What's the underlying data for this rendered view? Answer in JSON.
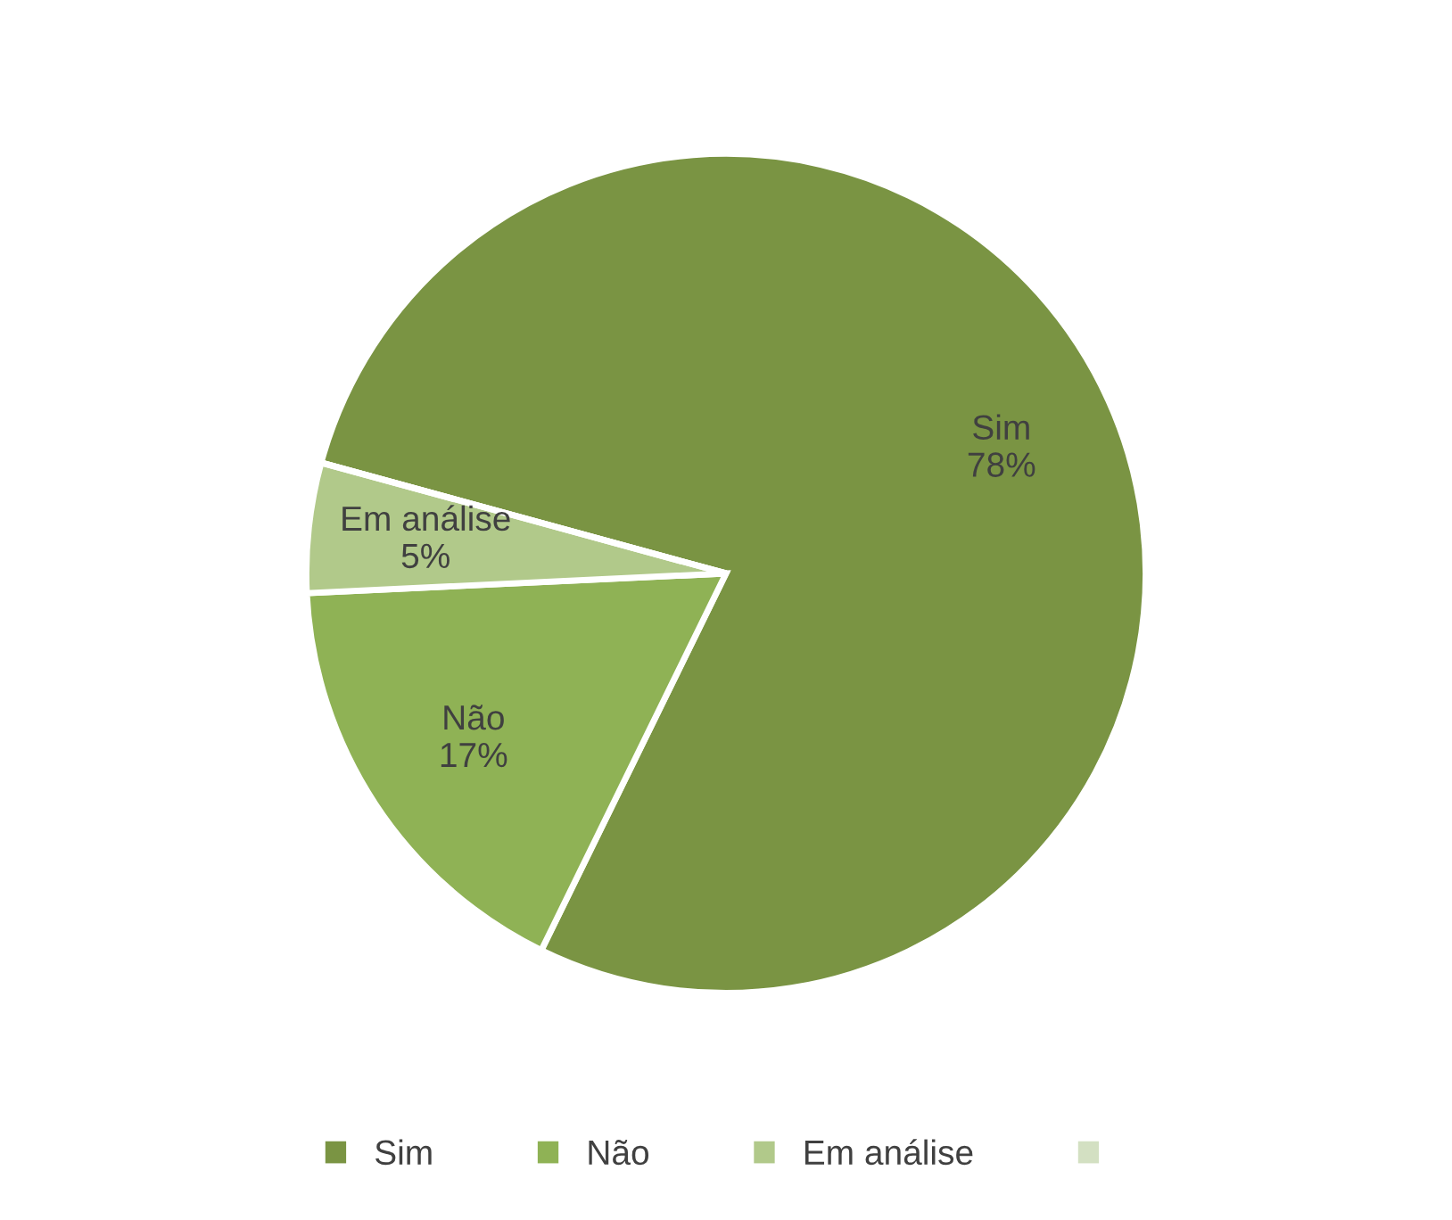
{
  "chart_data": {
    "type": "pie",
    "categories": [
      "Sim",
      "Não",
      "Em análise",
      null
    ],
    "values": [
      78,
      17,
      5,
      0
    ],
    "colors": [
      "#7a9443",
      "#8fb255",
      "#b1c98a",
      "#d3e0c2"
    ],
    "value_labels": [
      "Sim\n78%",
      "Não\n17%",
      "Em análise\n5%",
      null
    ],
    "legend": "bottom"
  }
}
